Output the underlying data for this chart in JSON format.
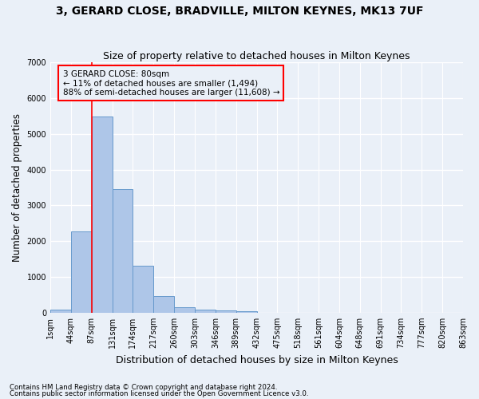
{
  "title": "3, GERARD CLOSE, BRADVILLE, MILTON KEYNES, MK13 7UF",
  "subtitle": "Size of property relative to detached houses in Milton Keynes",
  "xlabel": "Distribution of detached houses by size in Milton Keynes",
  "ylabel": "Number of detached properties",
  "footnote1": "Contains HM Land Registry data © Crown copyright and database right 2024.",
  "footnote2": "Contains public sector information licensed under the Open Government Licence v3.0.",
  "bar_values": [
    80,
    2280,
    5480,
    3450,
    1310,
    470,
    160,
    90,
    60,
    40,
    0,
    0,
    0,
    0,
    0,
    0,
    0,
    0,
    0,
    0
  ],
  "bin_labels": [
    "1sqm",
    "44sqm",
    "87sqm",
    "131sqm",
    "174sqm",
    "217sqm",
    "260sqm",
    "303sqm",
    "346sqm",
    "389sqm",
    "432sqm",
    "475sqm",
    "518sqm",
    "561sqm",
    "604sqm",
    "648sqm",
    "691sqm",
    "734sqm",
    "777sqm",
    "820sqm",
    "863sqm"
  ],
  "bar_color": "#aec6e8",
  "bar_edgecolor": "#6699cc",
  "vline_x": 2,
  "vline_color": "red",
  "annotation_box_text": "3 GERARD CLOSE: 80sqm\n← 11% of detached houses are smaller (1,494)\n88% of semi-detached houses are larger (11,608) →",
  "ylim": [
    0,
    7000
  ],
  "yticks": [
    0,
    1000,
    2000,
    3000,
    4000,
    5000,
    6000,
    7000
  ],
  "bg_color": "#eaf0f8",
  "grid_color": "#ffffff",
  "title_fontsize": 10,
  "subtitle_fontsize": 9,
  "axis_label_fontsize": 8.5,
  "tick_fontsize": 7,
  "annot_fontsize": 7.5
}
